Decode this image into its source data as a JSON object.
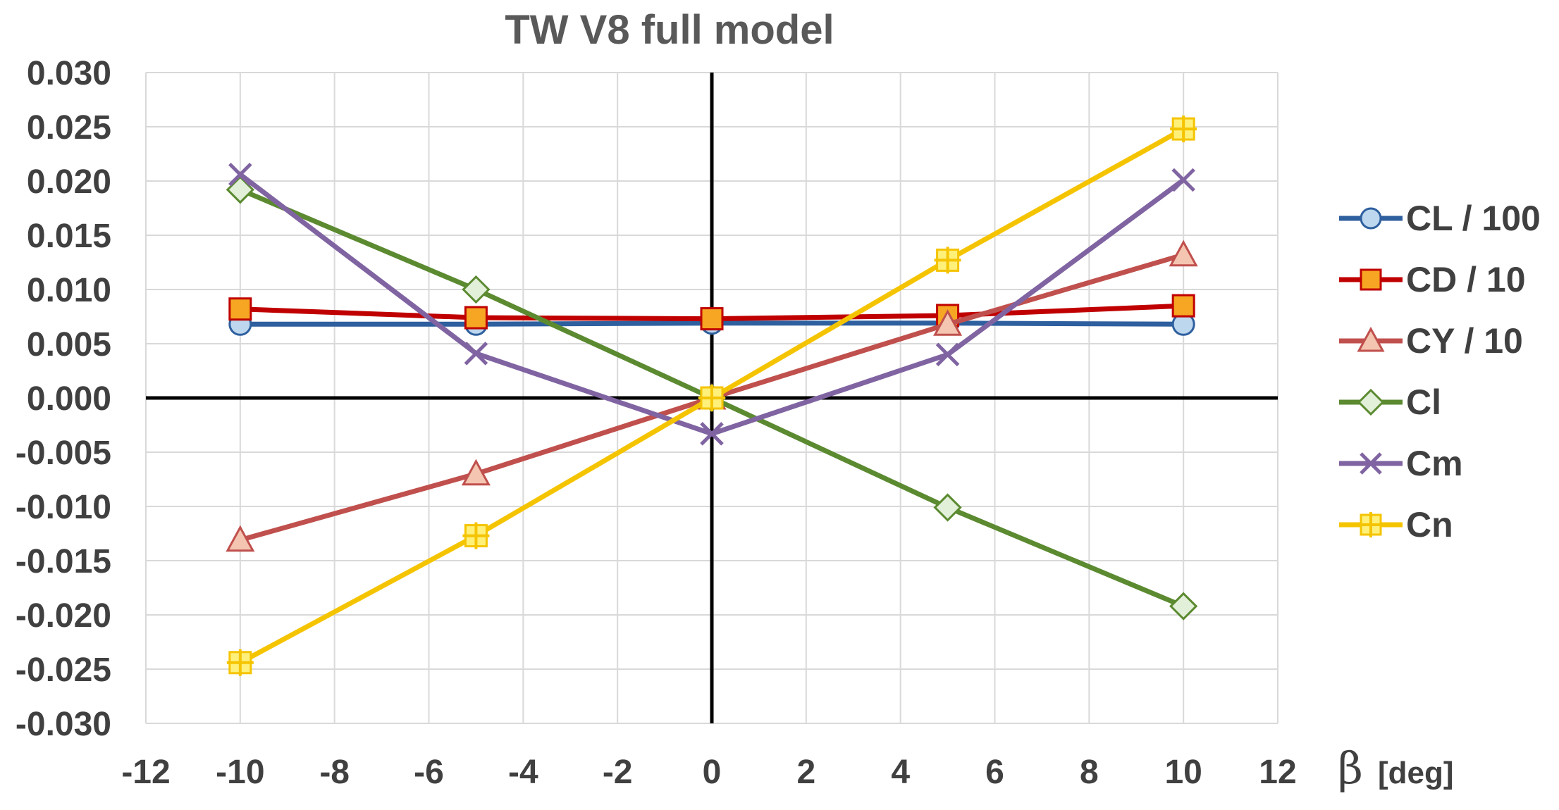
{
  "chart_data": {
    "type": "line",
    "title": "TW V8 full model",
    "xlabel_symbol": "β",
    "xlabel_unit": "[deg]",
    "ylabel": "",
    "xlim": [
      -12,
      12
    ],
    "ylim": [
      -0.03,
      0.03
    ],
    "x_ticks": [
      "-12",
      "-10",
      "-8",
      "-6",
      "-4",
      "-2",
      "0",
      "2",
      "4",
      "6",
      "8",
      "10",
      "12"
    ],
    "y_ticks": [
      "0.030",
      "0.025",
      "0.020",
      "0.015",
      "0.010",
      "0.005",
      "0.000",
      "-0.005",
      "-0.010",
      "-0.015",
      "-0.020",
      "-0.025",
      "-0.030"
    ],
    "grid": true,
    "legend_position": "right",
    "x": [
      -10,
      -5,
      0,
      5,
      10
    ],
    "series": [
      {
        "name": "CL / 100",
        "values": [
          0.0068,
          0.0068,
          0.0069,
          0.0069,
          0.0068
        ],
        "color": "#2e5f9e",
        "fill": "#bdd7ee",
        "marker": "circle"
      },
      {
        "name": "CD / 10",
        "values": [
          0.0082,
          0.0074,
          0.0073,
          0.0076,
          0.0085
        ],
        "color": "#c00000",
        "fill": "#f6a623",
        "marker": "square"
      },
      {
        "name": "CY / 10",
        "values": [
          -0.0131,
          -0.007,
          0.0,
          0.0068,
          0.0132
        ],
        "color": "#c0504d",
        "fill": "#f4c5b0",
        "marker": "triangle"
      },
      {
        "name": "Cl",
        "values": [
          0.0192,
          0.01,
          0.0,
          -0.0101,
          -0.0192
        ],
        "color": "#5b8a30",
        "fill": "#e2efd9",
        "marker": "diamond"
      },
      {
        "name": "Cm",
        "values": [
          0.0206,
          0.0041,
          -0.0033,
          0.004,
          0.0201
        ],
        "color": "#8064a2",
        "fill": "#d9cfe8",
        "marker": "x"
      },
      {
        "name": "Cn",
        "values": [
          -0.0244,
          -0.0127,
          0.0,
          0.0127,
          0.0248
        ],
        "color": "#f5c400",
        "fill": "#fff07a",
        "marker": "plus-square"
      }
    ]
  }
}
